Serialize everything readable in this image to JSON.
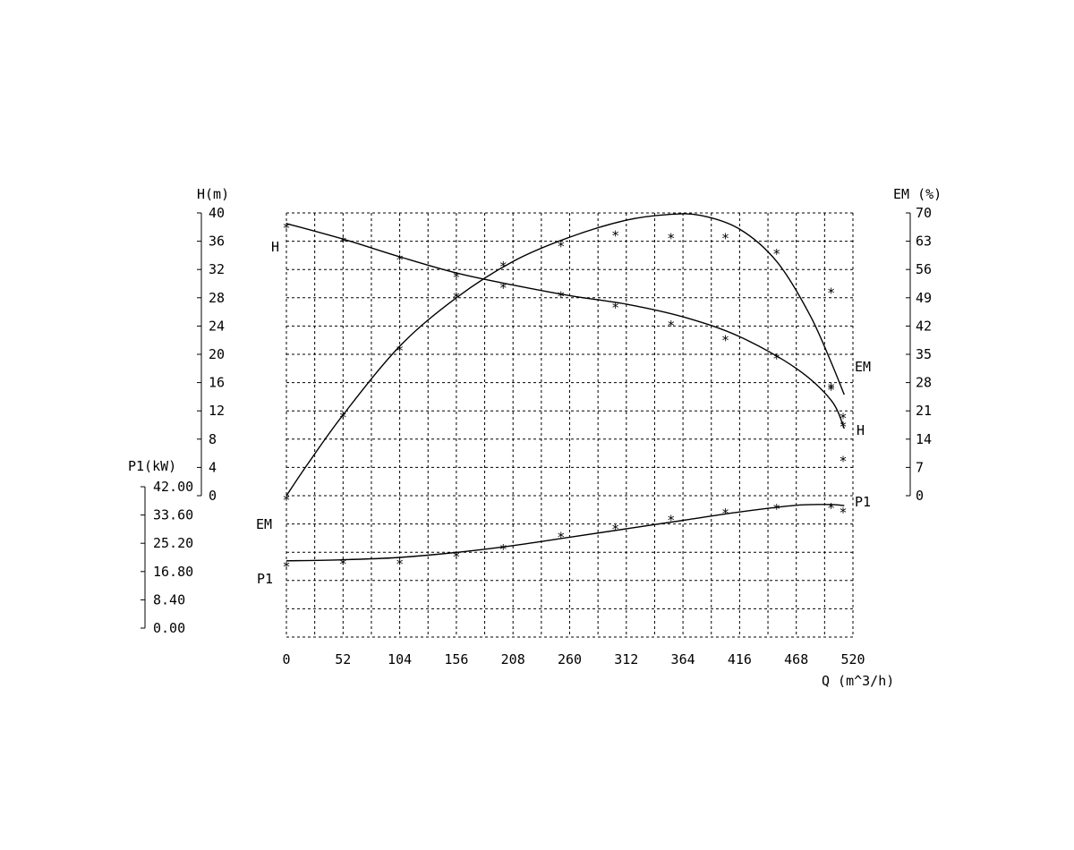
{
  "chart_data": {
    "type": "line",
    "x_axis": {
      "label": "Q (m^3/h)",
      "ticks": [
        "0",
        "52",
        "104",
        "156",
        "208",
        "260",
        "312",
        "364",
        "416",
        "468",
        "520"
      ],
      "range": [
        0,
        520
      ]
    },
    "y_axes": {
      "H": {
        "label": "H(m)",
        "ticks": [
          "0",
          "4",
          "8",
          "12",
          "16",
          "20",
          "24",
          "28",
          "32",
          "36",
          "40"
        ],
        "range": [
          0,
          40
        ]
      },
      "EM": {
        "label": "EM (%)",
        "ticks": [
          "0",
          "7",
          "14",
          "21",
          "28",
          "35",
          "42",
          "49",
          "56",
          "63",
          "70"
        ],
        "range": [
          0,
          70
        ]
      },
      "P1": {
        "label": "P1(kW)",
        "ticks": [
          "0.00",
          "8.40",
          "16.80",
          "25.20",
          "33.60",
          "42.00"
        ],
        "range": [
          0,
          42
        ]
      }
    },
    "series": [
      {
        "name": "H",
        "axis": "H",
        "curve_labels": [
          "H",
          "H"
        ],
        "curve": [
          [
            0,
            38.5
          ],
          [
            52,
            36.3
          ],
          [
            104,
            33.8
          ],
          [
            156,
            31.5
          ],
          [
            208,
            29.8
          ],
          [
            260,
            28.3
          ],
          [
            312,
            27.1
          ],
          [
            364,
            25.3
          ],
          [
            416,
            22.5
          ],
          [
            468,
            18.0
          ],
          [
            500,
            13.5
          ],
          [
            512,
            9.5
          ]
        ],
        "points": [
          [
            0,
            38.5
          ],
          [
            52,
            36.5
          ],
          [
            104,
            34.0
          ],
          [
            156,
            31.5
          ],
          [
            199,
            30.0
          ],
          [
            252,
            28.8
          ],
          [
            302,
            27.2
          ],
          [
            353,
            24.7
          ],
          [
            403,
            22.6
          ],
          [
            450,
            20.0
          ],
          [
            500,
            15.8
          ],
          [
            511,
            11.6
          ]
        ]
      },
      {
        "name": "EM",
        "axis": "EM",
        "curve_labels": [
          "EM",
          "EM"
        ],
        "curve": [
          [
            0,
            0
          ],
          [
            20,
            8
          ],
          [
            52,
            20
          ],
          [
            104,
            37
          ],
          [
            156,
            49
          ],
          [
            208,
            58
          ],
          [
            260,
            64
          ],
          [
            312,
            68.2
          ],
          [
            350,
            69.6
          ],
          [
            380,
            69.4
          ],
          [
            416,
            66
          ],
          [
            450,
            58
          ],
          [
            480,
            45
          ],
          [
            500,
            33
          ],
          [
            512,
            25
          ]
        ],
        "points": [
          [
            0,
            0
          ],
          [
            52,
            20.5
          ],
          [
            104,
            37.0
          ],
          [
            156,
            50.2
          ],
          [
            199,
            57.8
          ],
          [
            252,
            62.8
          ],
          [
            302,
            65.5
          ],
          [
            353,
            64.8
          ],
          [
            403,
            64.8
          ],
          [
            450,
            60.9
          ],
          [
            500,
            51.3
          ],
          [
            500,
            27.3
          ],
          [
            511,
            18.2
          ],
          [
            511,
            9.6
          ]
        ]
      },
      {
        "name": "P1",
        "axis": "P1",
        "curve_labels": [
          "P1",
          "P1"
        ],
        "curve": [
          [
            0,
            20.0
          ],
          [
            52,
            20.3
          ],
          [
            104,
            21.0
          ],
          [
            156,
            22.5
          ],
          [
            208,
            24.5
          ],
          [
            260,
            27.0
          ],
          [
            312,
            29.5
          ],
          [
            364,
            32.0
          ],
          [
            416,
            34.5
          ],
          [
            468,
            36.5
          ],
          [
            500,
            36.7
          ],
          [
            512,
            36.4
          ]
        ],
        "points": [
          [
            0,
            19.5
          ],
          [
            52,
            20.4
          ],
          [
            104,
            20.4
          ],
          [
            156,
            22.5
          ],
          [
            199,
            24.7
          ],
          [
            252,
            28.3
          ],
          [
            302,
            30.7
          ],
          [
            353,
            33.4
          ],
          [
            403,
            35.3
          ],
          [
            450,
            36.7
          ],
          [
            500,
            37.0
          ],
          [
            511,
            35.6
          ]
        ]
      }
    ],
    "grid": true,
    "markers": "asterisk"
  }
}
